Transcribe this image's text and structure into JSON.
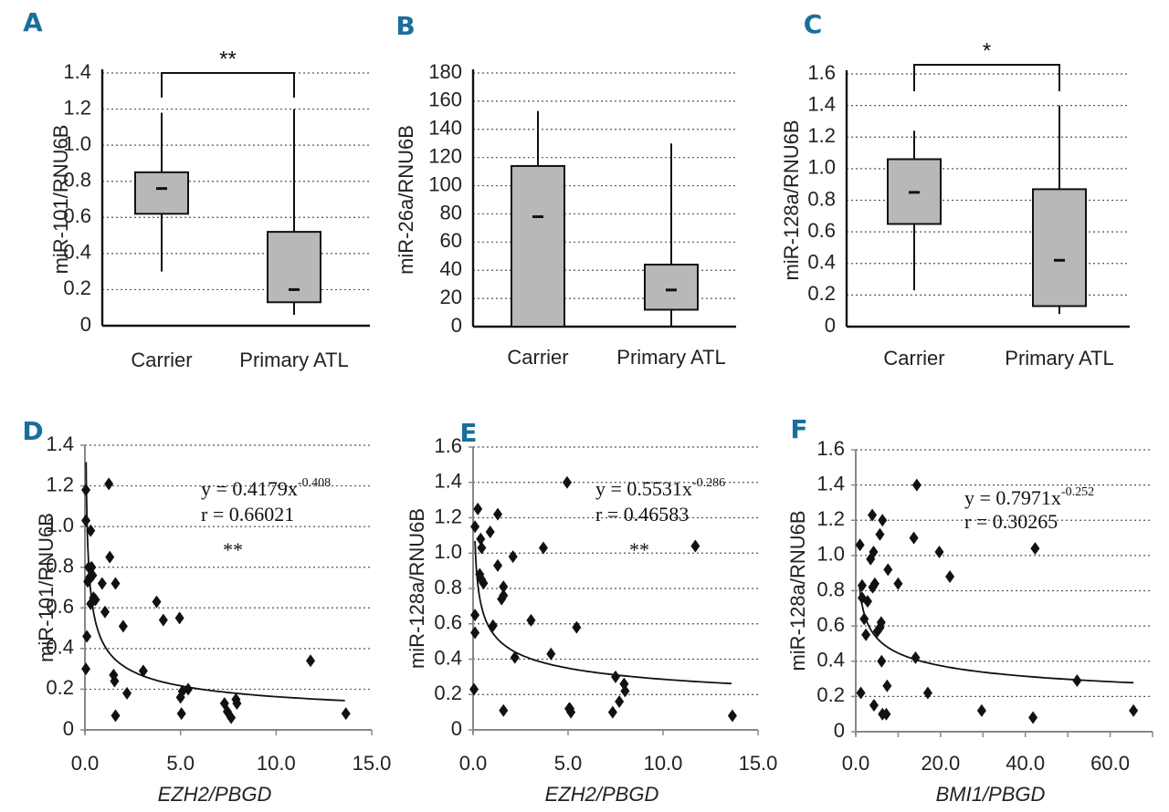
{
  "figure": {
    "accent_color": "#1a6e9a",
    "box_fill": "#b8b8b8"
  },
  "chart_data": [
    {
      "id": "A",
      "type": "box",
      "panel_label": "A",
      "ylabel": "miR-101/RNU6B",
      "xlabel": "",
      "ylim": [
        0,
        1.4
      ],
      "yticks": [
        0,
        0.2,
        0.4,
        0.6,
        0.8,
        1.0,
        1.2,
        1.4
      ],
      "ytick_labels": [
        "0",
        "0.2",
        "0.4",
        "0.6",
        "0.8",
        "1.0",
        "1.2",
        "1.4"
      ],
      "grid": true,
      "categories": [
        "Carrier",
        "Primary ATL"
      ],
      "boxes": [
        {
          "category": "Carrier",
          "whisker_low": 0.3,
          "q1": 0.62,
          "median": 0.76,
          "q3": 0.85,
          "whisker_high": 1.18
        },
        {
          "category": "Primary ATL",
          "whisker_low": 0.06,
          "q1": 0.13,
          "median": 0.2,
          "q3": 0.52,
          "whisker_high": 1.2
        }
      ],
      "significance": {
        "label": "**",
        "between": [
          "Carrier",
          "Primary ATL"
        ]
      }
    },
    {
      "id": "B",
      "type": "box",
      "panel_label": "B",
      "ylabel": "miR-26a/RNU6B",
      "xlabel": "",
      "ylim": [
        0,
        180
      ],
      "yticks": [
        0,
        20,
        40,
        60,
        80,
        100,
        120,
        140,
        160,
        180
      ],
      "ytick_labels": [
        "0",
        "20",
        "40",
        "60",
        "80",
        "100",
        "120",
        "140",
        "160",
        "180"
      ],
      "grid": true,
      "categories": [
        "Carrier",
        "Primary ATL"
      ],
      "boxes": [
        {
          "category": "Carrier",
          "whisker_low": 0,
          "q1": 0,
          "median": 78,
          "q3": 114,
          "whisker_high": 153
        },
        {
          "category": "Primary ATL",
          "whisker_low": 0,
          "q1": 12,
          "median": 26,
          "q3": 44,
          "whisker_high": 130
        }
      ],
      "significance": null
    },
    {
      "id": "C",
      "type": "box",
      "panel_label": "C",
      "ylabel": "miR-128a/RNU6B",
      "xlabel": "",
      "ylim": [
        0,
        1.6
      ],
      "yticks": [
        0,
        0.2,
        0.4,
        0.6,
        0.8,
        1.0,
        1.2,
        1.4,
        1.6
      ],
      "ytick_labels": [
        "0",
        "0.2",
        "0.4",
        "0.6",
        "0.8",
        "1.0",
        "1.2",
        "1.4",
        "1.6"
      ],
      "grid": true,
      "categories": [
        "Carrier",
        "Primary ATL"
      ],
      "boxes": [
        {
          "category": "Carrier",
          "whisker_low": 0.23,
          "q1": 0.65,
          "median": 0.85,
          "q3": 1.06,
          "whisker_high": 1.24
        },
        {
          "category": "Primary ATL",
          "whisker_low": 0.08,
          "q1": 0.13,
          "median": 0.42,
          "q3": 0.87,
          "whisker_high": 1.4
        }
      ],
      "significance": {
        "label": "*",
        "between": [
          "Carrier",
          "Primary ATL"
        ]
      }
    },
    {
      "id": "D",
      "type": "scatter",
      "panel_label": "D",
      "ylabel": "miR-101/RNU6B",
      "xlabel": "EZH2/PBGD",
      "xlim": [
        0,
        15
      ],
      "ylim": [
        0,
        1.4
      ],
      "xticks": [
        0,
        5,
        10,
        15
      ],
      "xtick_labels": [
        "0.0",
        "5.0",
        "10.0",
        "15.0"
      ],
      "yticks": [
        0,
        0.2,
        0.4,
        0.6,
        0.8,
        1.0,
        1.2,
        1.4
      ],
      "ytick_labels": [
        "0",
        "0.2",
        "0.4",
        "0.6",
        "0.8",
        "1.0",
        "1.2",
        "1.4"
      ],
      "grid": true,
      "fit": {
        "type": "power",
        "a": 0.4179,
        "b": -0.408,
        "x_range": [
          0.06,
          13.6
        ]
      },
      "equation_text": {
        "prefix": "y = 0.4179x",
        "exponent": "-0.408"
      },
      "r_text": "r = 0.66021",
      "significance": "**",
      "points": [
        [
          0.05,
          1.18
        ],
        [
          0.05,
          1.03
        ],
        [
          0.3,
          0.98
        ],
        [
          0.2,
          0.8
        ],
        [
          0.35,
          0.8
        ],
        [
          0.15,
          0.73
        ],
        [
          0.25,
          0.75
        ],
        [
          0.4,
          0.76
        ],
        [
          0.3,
          0.62
        ],
        [
          0.55,
          0.64
        ],
        [
          0.45,
          0.65
        ],
        [
          0.9,
          0.72
        ],
        [
          1.05,
          0.58
        ],
        [
          1.3,
          0.85
        ],
        [
          1.25,
          1.21
        ],
        [
          1.6,
          0.72
        ],
        [
          2.0,
          0.51
        ],
        [
          0.1,
          0.46
        ],
        [
          0.05,
          0.3
        ],
        [
          1.5,
          0.27
        ],
        [
          1.55,
          0.24
        ],
        [
          2.2,
          0.18
        ],
        [
          1.6,
          0.07
        ],
        [
          3.05,
          0.29
        ],
        [
          3.75,
          0.63
        ],
        [
          4.1,
          0.54
        ],
        [
          4.95,
          0.55
        ],
        [
          5.0,
          0.16
        ],
        [
          5.1,
          0.19
        ],
        [
          5.4,
          0.2
        ],
        [
          5.05,
          0.08
        ],
        [
          7.3,
          0.13
        ],
        [
          7.45,
          0.09
        ],
        [
          7.65,
          0.06
        ],
        [
          7.9,
          0.15
        ],
        [
          7.95,
          0.13
        ],
        [
          11.8,
          0.34
        ],
        [
          13.65,
          0.08
        ]
      ]
    },
    {
      "id": "E",
      "type": "scatter",
      "panel_label": "E",
      "ylabel": "miR-128a/RNU6B",
      "xlabel": "EZH2/PBGD",
      "xlim": [
        0,
        15
      ],
      "ylim": [
        0,
        1.6
      ],
      "xticks": [
        0,
        5,
        10,
        15
      ],
      "xtick_labels": [
        "0.0",
        "5.0",
        "10.0",
        "15.0"
      ],
      "yticks": [
        0,
        0.2,
        0.4,
        0.6,
        0.8,
        1.0,
        1.2,
        1.4,
        1.6
      ],
      "ytick_labels": [
        "0",
        "0.2",
        "0.4",
        "0.6",
        "0.8",
        "1.0",
        "1.2",
        "1.4",
        "1.6"
      ],
      "grid": true,
      "fit": {
        "type": "power",
        "a": 0.5531,
        "b": -0.286,
        "x_range": [
          0.1,
          13.6
        ]
      },
      "equation_text": {
        "prefix": "y = 0.5531x",
        "exponent": "-0.286"
      },
      "r_text": "r = 0.46583",
      "significance": "**",
      "points": [
        [
          0.25,
          1.25
        ],
        [
          0.1,
          1.15
        ],
        [
          0.4,
          1.08
        ],
        [
          0.45,
          1.03
        ],
        [
          0.35,
          0.88
        ],
        [
          0.45,
          0.85
        ],
        [
          0.55,
          0.83
        ],
        [
          1.3,
          1.22
        ],
        [
          0.9,
          1.12
        ],
        [
          1.3,
          0.93
        ],
        [
          2.1,
          0.98
        ],
        [
          1.6,
          0.81
        ],
        [
          1.5,
          0.74
        ],
        [
          1.6,
          0.76
        ],
        [
          0.1,
          0.65
        ],
        [
          0.1,
          0.55
        ],
        [
          1.05,
          0.59
        ],
        [
          2.2,
          0.41
        ],
        [
          3.05,
          0.62
        ],
        [
          3.7,
          1.03
        ],
        [
          4.1,
          0.43
        ],
        [
          4.95,
          1.4
        ],
        [
          5.45,
          0.58
        ],
        [
          5.1,
          0.12
        ],
        [
          5.15,
          0.1
        ],
        [
          5.05,
          0.12
        ],
        [
          1.6,
          0.11
        ],
        [
          0.05,
          0.23
        ],
        [
          7.35,
          0.1
        ],
        [
          7.5,
          0.3
        ],
        [
          7.7,
          0.16
        ],
        [
          7.95,
          0.26
        ],
        [
          8.0,
          0.22
        ],
        [
          11.7,
          1.04
        ],
        [
          13.65,
          0.08
        ]
      ]
    },
    {
      "id": "F",
      "type": "scatter",
      "panel_label": "F",
      "ylabel": "miR-128a/RNU6B",
      "xlabel": "BMI1/PBGD",
      "xlim": [
        0,
        70
      ],
      "ylim": [
        0,
        1.6
      ],
      "xticks": [
        0,
        10,
        20,
        30,
        40,
        50,
        60,
        70
      ],
      "xtick_labels": [
        "0.0",
        "",
        "20.0",
        "",
        "40.0",
        "",
        "60.0",
        ""
      ],
      "yticks": [
        0,
        0.2,
        0.4,
        0.6,
        0.8,
        1.0,
        1.2,
        1.4,
        1.6
      ],
      "ytick_labels": [
        "0",
        "0.2",
        "0.4",
        "0.6",
        "0.8",
        "1.0",
        "1.2",
        "1.4",
        "1.6"
      ],
      "grid": true,
      "fit": {
        "type": "power",
        "a": 0.7971,
        "b": -0.252,
        "x_range": [
          0.9,
          65.5
        ]
      },
      "equation_text": {
        "prefix": "y = 0.7971x",
        "exponent": "-0.252"
      },
      "r_text": "r = 0.30265",
      "significance": "",
      "points": [
        [
          1.0,
          1.06
        ],
        [
          1.5,
          0.83
        ],
        [
          1.5,
          0.76
        ],
        [
          2.8,
          0.74
        ],
        [
          2.0,
          0.64
        ],
        [
          2.4,
          0.55
        ],
        [
          1.2,
          0.22
        ],
        [
          3.5,
          0.98
        ],
        [
          3.9,
          1.23
        ],
        [
          4.2,
          1.02
        ],
        [
          4.0,
          0.82
        ],
        [
          4.5,
          0.84
        ],
        [
          5.7,
          1.12
        ],
        [
          6.3,
          1.2
        ],
        [
          7.6,
          0.92
        ],
        [
          5.1,
          0.57
        ],
        [
          5.7,
          0.59
        ],
        [
          6.0,
          0.62
        ],
        [
          6.1,
          0.4
        ],
        [
          4.3,
          0.15
        ],
        [
          6.3,
          0.1
        ],
        [
          7.2,
          0.1
        ],
        [
          7.4,
          0.26
        ],
        [
          10.0,
          0.84
        ],
        [
          13.7,
          1.1
        ],
        [
          14.4,
          1.4
        ],
        [
          14.1,
          0.42
        ],
        [
          17.0,
          0.22
        ],
        [
          19.7,
          1.02
        ],
        [
          22.2,
          0.88
        ],
        [
          29.7,
          0.12
        ],
        [
          42.3,
          1.04
        ],
        [
          41.8,
          0.08
        ],
        [
          52.2,
          0.29
        ],
        [
          65.5,
          0.12
        ]
      ]
    }
  ]
}
